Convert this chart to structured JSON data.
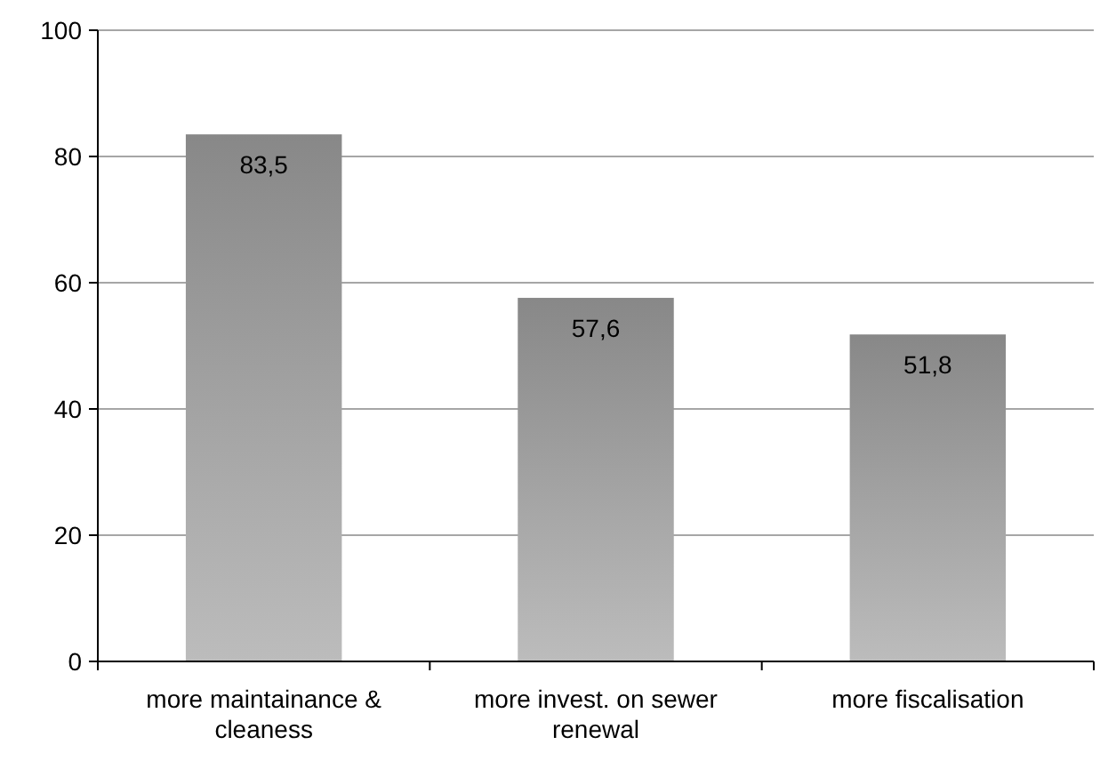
{
  "chart_data": {
    "type": "bar",
    "categories": [
      "more maintainance & cleaness",
      "more invest. on sewer renewal",
      "more fiscalisation"
    ],
    "values": [
      83.5,
      57.6,
      51.8
    ],
    "value_labels": [
      "83,5",
      "57,6",
      "51,8"
    ],
    "color": "#a0a0a0",
    "ylim": [
      0,
      100
    ],
    "yticks": [
      0,
      20,
      40,
      60,
      80,
      100
    ],
    "grid": "y"
  }
}
